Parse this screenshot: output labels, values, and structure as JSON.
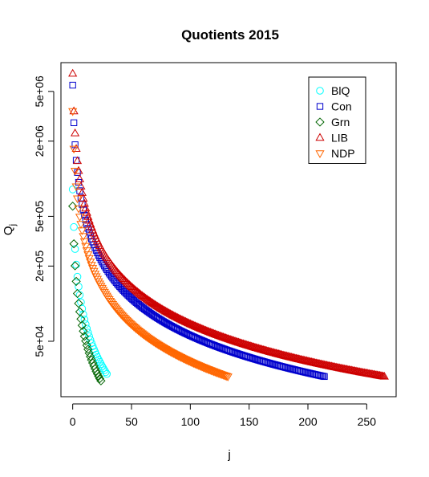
{
  "chart_data": {
    "type": "scatter",
    "title": "Quotients 2015",
    "xlabel": "j",
    "ylabel": "Q",
    "ylabel_subscript": "j",
    "y_scale": "log",
    "xlim": [
      -10,
      275
    ],
    "ylim": [
      18000,
      8500000
    ],
    "x_ticks": [
      0,
      50,
      100,
      150,
      200,
      250
    ],
    "x_tick_labels": [
      "0",
      "50",
      "100",
      "150",
      "200",
      "250"
    ],
    "y_ticks": [
      50000,
      200000,
      500000,
      2000000,
      5000000
    ],
    "y_tick_labels": [
      "5e+04",
      "2e+05",
      "5e+05",
      "2e+06",
      "5e+06"
    ],
    "legend_position": "top-right",
    "series": [
      {
        "name": "BlQ",
        "color": "#00ffff",
        "marker": "circle",
        "first_value": 821144,
        "count": 30,
        "x_start": 0
      },
      {
        "name": "Con",
        "color": "#0000cd",
        "marker": "square",
        "first_value": 5613633,
        "count": 215,
        "x_start": 0
      },
      {
        "name": "Grn",
        "color": "#006400",
        "marker": "diamond",
        "first_value": 602933,
        "count": 25,
        "x_start": 0
      },
      {
        "name": "LIB",
        "color": "#cd0000",
        "marker": "triangle-up",
        "first_value": 6942937,
        "count": 266,
        "x_start": 0
      },
      {
        "name": "NDP",
        "color": "#ff6600",
        "marker": "triangle-down",
        "first_value": 3470350,
        "count": 133,
        "x_start": 0
      }
    ],
    "value_formula": "Q_j = first_value / (j + 1)"
  }
}
